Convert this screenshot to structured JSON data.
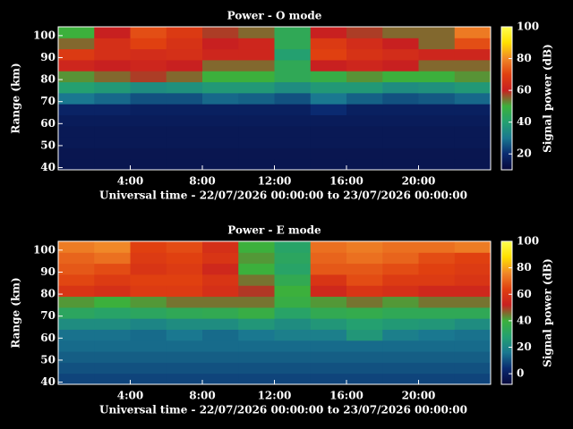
{
  "chart_data": [
    {
      "type": "heatmap",
      "title": "Power - O mode",
      "xlabel": "Universal time - 22/07/2026 00:00:00 to 23/07/2026 00:00:00",
      "ylabel": "Range (km)",
      "colorbar_label": "Signal power (dB)",
      "xlim": [
        0,
        24
      ],
      "xticks": [
        {
          "value": 4,
          "label": "4:00"
        },
        {
          "value": 8,
          "label": "8:00"
        },
        {
          "value": 12,
          "label": "12:00"
        },
        {
          "value": 16,
          "label": "16:00"
        },
        {
          "value": 20,
          "label": "20:00"
        }
      ],
      "ylim": [
        39,
        104
      ],
      "yticks": [
        40,
        50,
        60,
        70,
        80,
        90,
        100
      ],
      "x_bins": [
        0,
        2,
        4,
        6,
        8,
        10,
        12,
        14,
        16,
        18,
        20,
        22,
        24
      ],
      "y_bins": [
        39,
        44,
        49,
        54,
        59,
        64,
        69,
        74,
        79,
        84,
        89,
        94,
        99,
        104
      ],
      "z": [
        [
          14,
          14,
          14,
          14,
          14,
          14,
          14,
          14,
          14,
          14,
          14,
          14
        ],
        [
          14,
          14,
          14,
          14,
          14,
          14,
          14,
          14,
          14,
          14,
          14,
          14
        ],
        [
          15,
          15,
          15,
          15,
          15,
          15,
          15,
          15,
          15,
          15,
          15,
          15
        ],
        [
          15,
          15,
          15,
          15,
          15,
          15,
          15,
          15,
          15,
          15,
          15,
          15
        ],
        [
          16,
          16,
          16,
          16,
          16,
          16,
          16,
          16,
          16,
          16,
          16,
          16
        ],
        [
          18,
          18,
          17,
          17,
          17,
          17,
          17,
          20,
          17,
          17,
          17,
          17
        ],
        [
          30,
          28,
          25,
          25,
          28,
          27,
          25,
          30,
          27,
          25,
          26,
          28
        ],
        [
          40,
          38,
          35,
          36,
          38,
          38,
          35,
          38,
          38,
          35,
          36,
          38
        ],
        [
          52,
          55,
          58,
          55,
          50,
          50,
          45,
          48,
          52,
          50,
          50,
          52
        ],
        [
          62,
          60,
          62,
          60,
          55,
          55,
          45,
          60,
          62,
          60,
          55,
          55
        ],
        [
          68,
          65,
          64,
          65,
          62,
          62,
          40,
          70,
          66,
          64,
          62,
          62
        ],
        [
          55,
          65,
          70,
          66,
          60,
          62,
          45,
          68,
          64,
          60,
          55,
          72
        ],
        [
          50,
          60,
          72,
          68,
          58,
          55,
          45,
          60,
          58,
          55,
          55,
          78
        ]
      ],
      "zlim": [
        10,
        100
      ],
      "zticks": [
        20,
        40,
        60,
        80,
        100
      ],
      "colormap": [
        "#08083a",
        "#0a2a70",
        "#1a7890",
        "#24a070",
        "#3cb03c",
        "#c82020",
        "#e04010",
        "#f08828",
        "#ffe000",
        "#ffff50"
      ]
    },
    {
      "type": "heatmap",
      "title": "Power - E mode",
      "xlabel": "Universal time - 22/07/2026 00:00:00 to 23/07/2026 00:00:00",
      "ylabel": "Range (km)",
      "colorbar_label": "Signal power (dB)",
      "xlim": [
        0,
        24
      ],
      "xticks": [
        {
          "value": 4,
          "label": "4:00"
        },
        {
          "value": 8,
          "label": "8:00"
        },
        {
          "value": 12,
          "label": "12:00"
        },
        {
          "value": 16,
          "label": "16:00"
        },
        {
          "value": 20,
          "label": "20:00"
        }
      ],
      "ylim": [
        39,
        104
      ],
      "yticks": [
        40,
        50,
        60,
        70,
        80,
        90,
        100
      ],
      "x_bins": [
        0,
        2,
        4,
        6,
        8,
        10,
        12,
        14,
        16,
        18,
        20,
        22,
        24
      ],
      "y_bins": [
        39,
        44,
        49,
        54,
        59,
        64,
        69,
        74,
        79,
        84,
        89,
        94,
        99,
        104
      ],
      "z": [
        [
          8,
          8,
          8,
          8,
          8,
          8,
          8,
          8,
          8,
          8,
          8,
          8
        ],
        [
          10,
          10,
          10,
          10,
          10,
          10,
          10,
          10,
          10,
          10,
          10,
          10
        ],
        [
          12,
          12,
          12,
          12,
          12,
          12,
          12,
          12,
          12,
          12,
          12,
          12
        ],
        [
          14,
          14,
          14,
          14,
          14,
          14,
          14,
          14,
          14,
          14,
          14,
          14
        ],
        [
          15,
          15,
          14,
          16,
          14,
          16,
          18,
          18,
          25,
          18,
          16,
          15
        ],
        [
          22,
          22,
          20,
          22,
          22,
          25,
          22,
          25,
          28,
          26,
          25,
          22
        ],
        [
          32,
          30,
          32,
          34,
          35,
          38,
          30,
          35,
          36,
          34,
          34,
          34
        ],
        [
          42,
          40,
          42,
          45,
          45,
          45,
          38,
          42,
          45,
          42,
          45,
          45
        ],
        [
          60,
          58,
          62,
          62,
          58,
          50,
          40,
          55,
          60,
          58,
          55,
          55
        ],
        [
          65,
          62,
          64,
          64,
          60,
          45,
          35,
          60,
          66,
          62,
          62,
          60
        ],
        [
          68,
          66,
          60,
          62,
          55,
          40,
          30,
          68,
          68,
          66,
          64,
          62
        ],
        [
          70,
          72,
          62,
          64,
          60,
          42,
          32,
          70,
          72,
          70,
          66,
          64
        ],
        [
          74,
          76,
          64,
          66,
          58,
          40,
          30,
          72,
          74,
          72,
          72,
          74
        ]
      ],
      "zlim": [
        -8,
        100
      ],
      "zticks": [
        0,
        20,
        40,
        60,
        80,
        100
      ],
      "colormap": [
        "#08083a",
        "#0a2a70",
        "#1a7890",
        "#24a070",
        "#3cb03c",
        "#c82020",
        "#e04010",
        "#f08828",
        "#ffe000",
        "#ffff50"
      ]
    }
  ]
}
